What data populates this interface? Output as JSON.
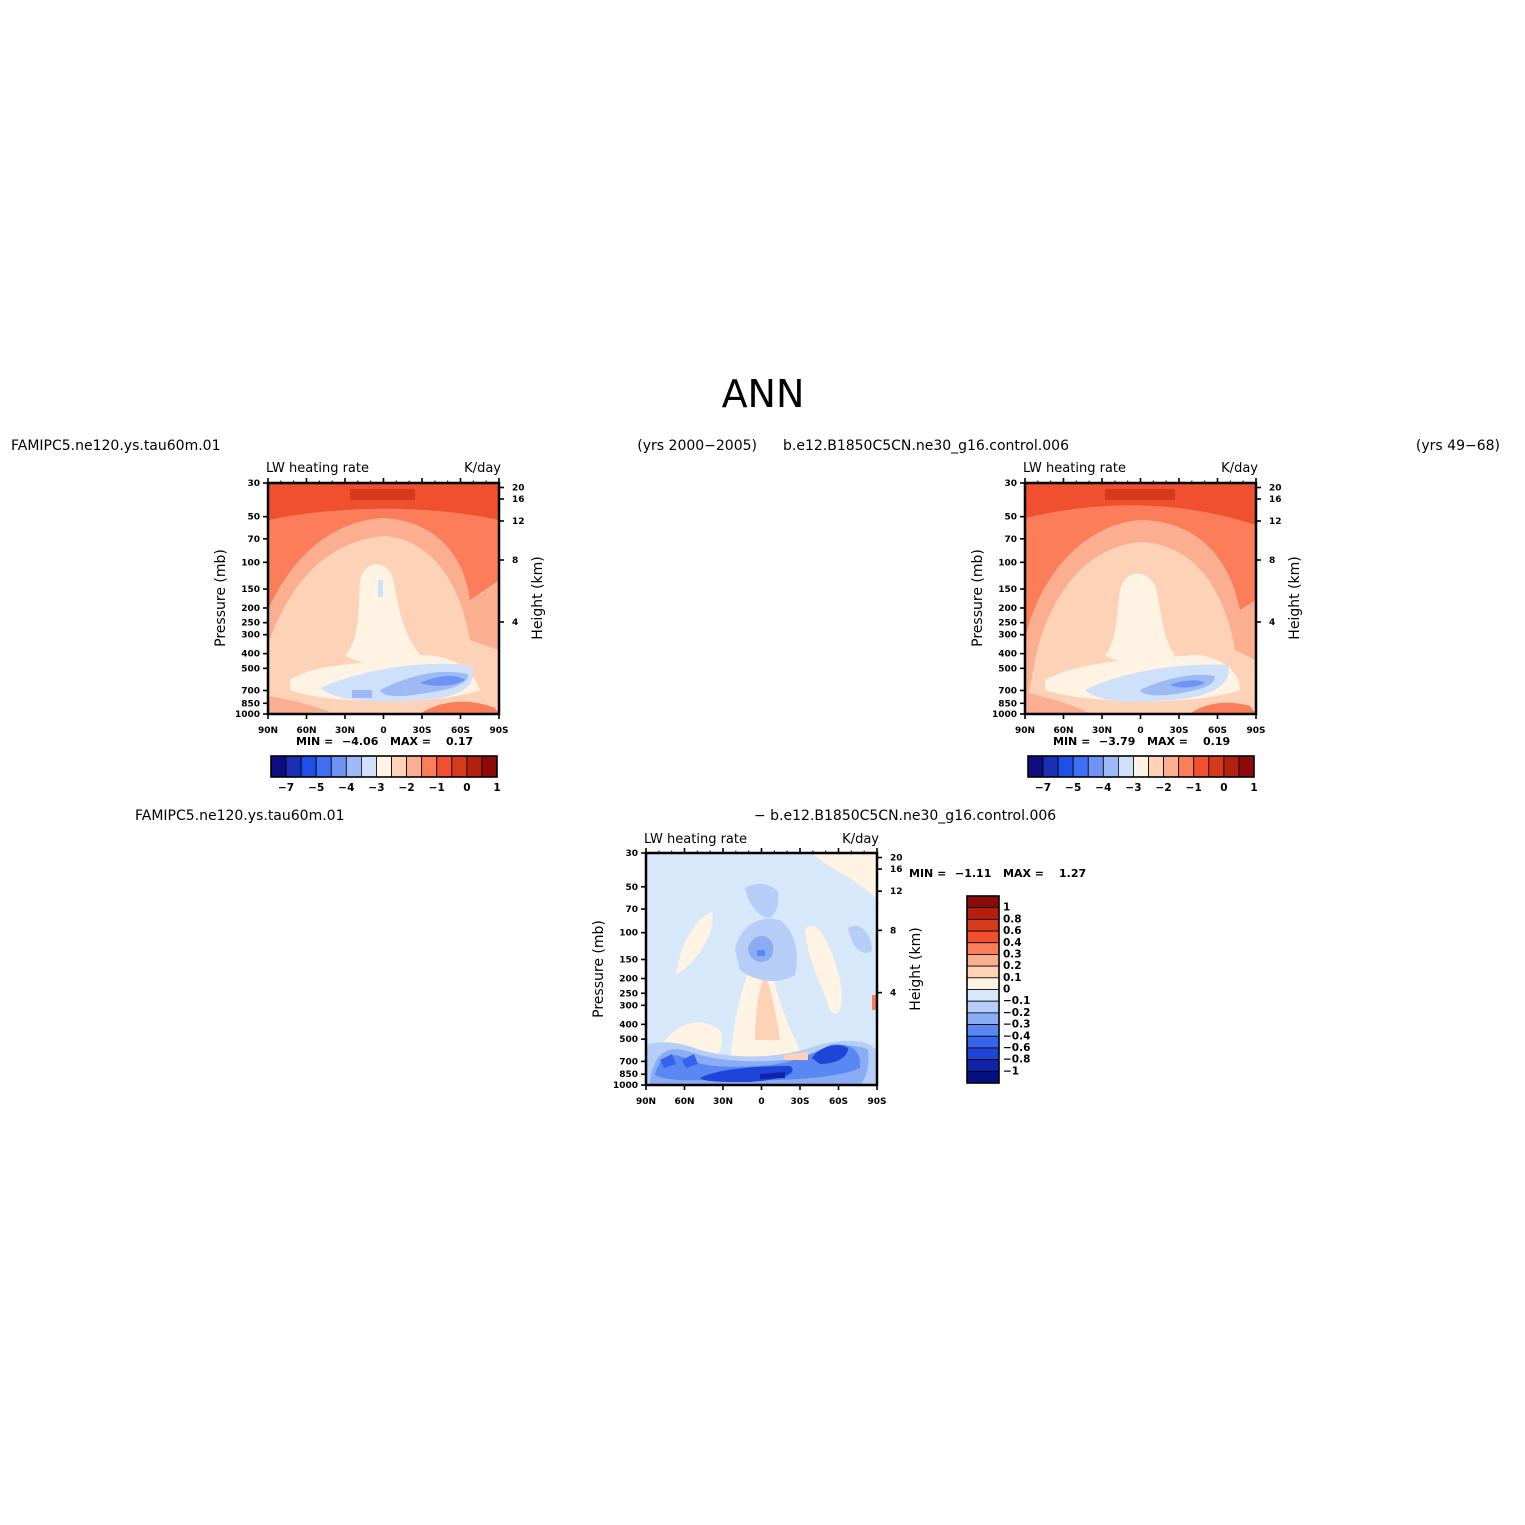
{
  "figure": {
    "title": "ANN",
    "panel_top_left": {
      "case_name": "FAMIPC5.ne120.ys.tau60m.01",
      "years": "(yrs 2000−2005)",
      "variable": "LW heating rate",
      "units": "K/day",
      "min_label": "MIN =",
      "min_value": "−4.06",
      "max_label": "MAX =",
      "max_value": "0.17"
    },
    "panel_top_right": {
      "case_name": "b.e12.B1850C5CN.ne30_g16.control.006",
      "years": "(yrs 49−68)",
      "variable": "LW heating rate",
      "units": "K/day",
      "min_label": "MIN =",
      "min_value": "−3.79",
      "max_label": "MAX =",
      "max_value": "0.19"
    },
    "panel_bottom": {
      "case_name_a": "FAMIPC5.ne120.ys.tau60m.01",
      "case_name_b": "− b.e12.B1850C5CN.ne30_g16.control.006",
      "variable": "LW heating rate",
      "units": "K/day",
      "min_label": "MIN =",
      "min_value": "−1.11",
      "max_label": "MAX =",
      "max_value": "1.27"
    },
    "y_axis_title": "Pressure (mb)",
    "y2_axis_title": "Height (km)"
  },
  "chart_data": [
    {
      "type": "heatmap",
      "title": "LW heating rate",
      "units": "K/day",
      "x_ticks": [
        "90N",
        "60N",
        "30N",
        "0",
        "30S",
        "60S",
        "90S"
      ],
      "y_ticks": [
        30,
        50,
        70,
        100,
        150,
        200,
        250,
        300,
        400,
        500,
        700,
        850,
        1000
      ],
      "y_scale": "log",
      "y_range": [
        30,
        1000
      ],
      "y2_ticks": [
        20,
        16,
        12,
        8,
        4
      ],
      "color_levels": [
        "−7",
        "−5",
        "−4",
        "−3",
        "−2",
        "−1",
        "0",
        "1"
      ],
      "min": -4.06,
      "max": 0.17
    },
    {
      "type": "heatmap",
      "title": "LW heating rate",
      "units": "K/day",
      "x_ticks": [
        "90N",
        "60N",
        "30N",
        "0",
        "30S",
        "60S",
        "90S"
      ],
      "y_ticks": [
        30,
        50,
        70,
        100,
        150,
        200,
        250,
        300,
        400,
        500,
        700,
        850,
        1000
      ],
      "y_scale": "log",
      "y_range": [
        30,
        1000
      ],
      "y2_ticks": [
        20,
        16,
        12,
        8,
        4
      ],
      "color_levels": [
        "−7",
        "−5",
        "−4",
        "−3",
        "−2",
        "−1",
        "0",
        "1"
      ],
      "min": -3.79,
      "max": 0.19
    },
    {
      "type": "heatmap",
      "title": "LW heating rate",
      "units": "K/day",
      "x_ticks": [
        "90N",
        "60N",
        "30N",
        "0",
        "30S",
        "60S",
        "90S"
      ],
      "y_ticks": [
        30,
        50,
        70,
        100,
        150,
        200,
        250,
        300,
        400,
        500,
        700,
        850,
        1000
      ],
      "y_scale": "log",
      "y_range": [
        30,
        1000
      ],
      "y2_ticks": [
        20,
        16,
        12,
        8,
        4
      ],
      "color_levels": [
        "1",
        "0.8",
        "0.6",
        "0.4",
        "0.3",
        "0.2",
        "0.1",
        "0",
        "−0.1",
        "−0.2",
        "−0.3",
        "−0.4",
        "−0.6",
        "−0.8",
        "−1"
      ],
      "min": -1.11,
      "max": 1.27
    }
  ],
  "colors": {
    "cbar_horizontal": [
      "#0d0d80",
      "#1a2fb5",
      "#1f4fe6",
      "#3f6ff5",
      "#6e93f5",
      "#9ebaf5",
      "#cfe0fa",
      "#fff3e3",
      "#fdd2b7",
      "#fcae91",
      "#fb7d59",
      "#f05030",
      "#d53a1a",
      "#b32010",
      "#8c0a0a"
    ],
    "cbar_vertical": [
      "#8c0a0a",
      "#b32010",
      "#d53a1a",
      "#f05030",
      "#fb7d59",
      "#fcae91",
      "#fdd2b7",
      "#fff3e3",
      "#d8e8fb",
      "#b6cdf7",
      "#8aacf5",
      "#5a88f2",
      "#3463ee",
      "#1f44d8",
      "#0d24a8",
      "#050f80"
    ]
  }
}
